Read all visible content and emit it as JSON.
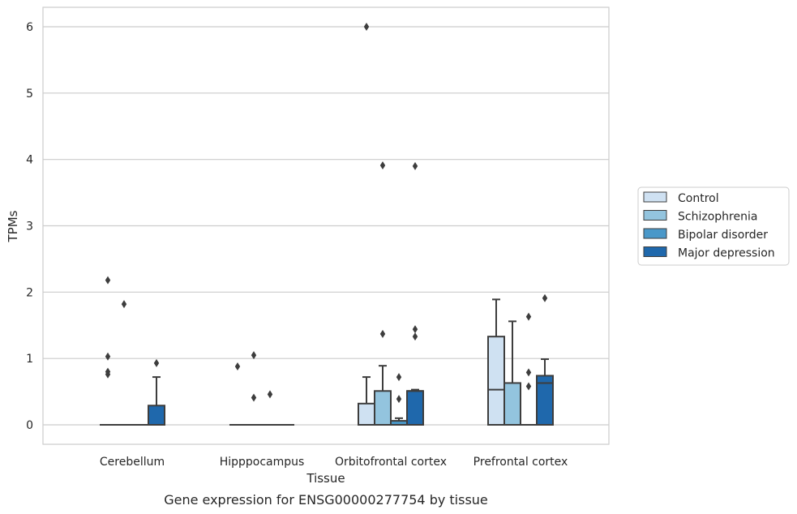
{
  "chart_data": {
    "type": "box",
    "title": "",
    "caption": "Gene expression for ENSG00000277754 by tissue",
    "xlabel": "Tissue",
    "ylabel": "TPMs",
    "ylim": [
      -0.3,
      6.3
    ],
    "yticks": [
      0,
      1,
      2,
      3,
      4,
      5,
      6
    ],
    "grid": true,
    "legend_position": "right",
    "categories": [
      "Cerebellum",
      "Hipppocampus",
      "Orbitofrontal cortex",
      "Prefrontal cortex"
    ],
    "series": [
      {
        "name": "Control",
        "color": "#cfe1f2",
        "boxes": [
          {
            "q1": 0,
            "median": 0,
            "q3": 0,
            "whisker_low": 0,
            "whisker_high": 0,
            "outliers": [
              0.76,
              0.8,
              1.03,
              2.18
            ]
          },
          {
            "q1": 0,
            "median": 0,
            "q3": 0,
            "whisker_low": 0,
            "whisker_high": 0,
            "outliers": [
              0.88
            ]
          },
          {
            "q1": 0,
            "median": 0,
            "q3": 0.32,
            "whisker_low": 0,
            "whisker_high": 0.72,
            "outliers": [
              6.0
            ]
          },
          {
            "q1": 0,
            "median": 0.53,
            "q3": 1.33,
            "whisker_low": 0,
            "whisker_high": 1.89,
            "outliers": []
          }
        ]
      },
      {
        "name": "Schizophrenia",
        "color": "#93c4de",
        "boxes": [
          {
            "q1": 0,
            "median": 0,
            "q3": 0,
            "whisker_low": 0,
            "whisker_high": 0,
            "outliers": [
              1.82
            ]
          },
          {
            "q1": 0,
            "median": 0,
            "q3": 0,
            "whisker_low": 0,
            "whisker_high": 0,
            "outliers": [
              0.41,
              1.05
            ]
          },
          {
            "q1": 0,
            "median": 0,
            "q3": 0.51,
            "whisker_low": 0,
            "whisker_high": 0.89,
            "outliers": [
              1.37,
              3.91
            ]
          },
          {
            "q1": 0,
            "median": 0,
            "q3": 0.63,
            "whisker_low": 0,
            "whisker_high": 1.56,
            "outliers": []
          }
        ]
      },
      {
        "name": "Bipolar disorder",
        "color": "#4a98c9",
        "boxes": [
          {
            "q1": 0,
            "median": 0,
            "q3": 0,
            "whisker_low": 0,
            "whisker_high": 0,
            "outliers": []
          },
          {
            "q1": 0,
            "median": 0,
            "q3": 0,
            "whisker_low": 0,
            "whisker_high": 0,
            "outliers": [
              0.46
            ]
          },
          {
            "q1": 0,
            "median": 0,
            "q3": 0.06,
            "whisker_low": 0,
            "whisker_high": 0.1,
            "outliers": [
              0.39,
              0.72
            ]
          },
          {
            "q1": 0,
            "median": 0,
            "q3": 0,
            "whisker_low": 0,
            "whisker_high": 0,
            "outliers": [
              0.58,
              0.79,
              1.63
            ]
          }
        ]
      },
      {
        "name": "Major depression",
        "color": "#1f68ac",
        "boxes": [
          {
            "q1": 0,
            "median": 0,
            "q3": 0.29,
            "whisker_low": 0,
            "whisker_high": 0.72,
            "outliers": [
              0.93
            ]
          },
          {
            "q1": 0,
            "median": 0,
            "q3": 0,
            "whisker_low": 0,
            "whisker_high": 0,
            "outliers": []
          },
          {
            "q1": 0,
            "median": 0.51,
            "q3": 0.51,
            "whisker_low": 0,
            "whisker_high": 0.53,
            "outliers": [
              1.33,
              1.44,
              3.9
            ]
          },
          {
            "q1": 0,
            "median": 0.63,
            "q3": 0.74,
            "whisker_low": 0,
            "whisker_high": 0.99,
            "outliers": [
              1.91
            ]
          }
        ]
      }
    ]
  }
}
